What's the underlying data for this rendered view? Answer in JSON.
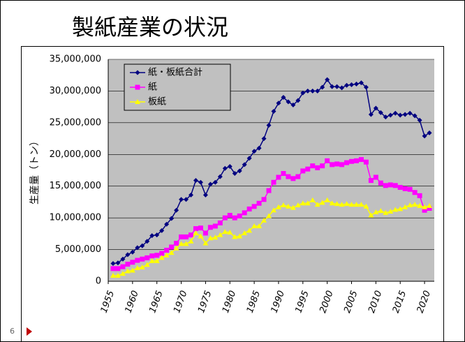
{
  "title": "製紙産業の状況",
  "page_number": "6",
  "chart_data": {
    "type": "line",
    "ylabel": "生産量（トン）",
    "x": [
      1956,
      1957,
      1958,
      1959,
      1960,
      1961,
      1962,
      1963,
      1964,
      1965,
      1966,
      1967,
      1968,
      1969,
      1970,
      1971,
      1972,
      1973,
      1974,
      1975,
      1976,
      1977,
      1978,
      1979,
      1980,
      1981,
      1982,
      1983,
      1984,
      1985,
      1986,
      1987,
      1988,
      1989,
      1990,
      1991,
      1992,
      1993,
      1994,
      1995,
      1996,
      1997,
      1998,
      1999,
      2000,
      2001,
      2002,
      2003,
      2004,
      2005,
      2006,
      2007,
      2008,
      2009,
      2010,
      2011,
      2012,
      2013,
      2014,
      2015,
      2016,
      2017,
      2018,
      2019,
      2020,
      2021
    ],
    "xlim": [
      1955,
      2022
    ],
    "xticks": [
      1955,
      1960,
      1965,
      1970,
      1975,
      1980,
      1985,
      1990,
      1995,
      2000,
      2005,
      2010,
      2015,
      2020
    ],
    "ylim": [
      0,
      35000000
    ],
    "yticks": [
      0,
      {
        "value": 5000000,
        "label": "5,000,000"
      },
      {
        "value": 10000000,
        "label": "10,000,000"
      },
      {
        "value": 15000000,
        "label": "15,000,000"
      },
      {
        "value": 20000000,
        "label": "20,000,000"
      },
      {
        "value": 25000000,
        "label": "25,000,000"
      },
      {
        "value": 30000000,
        "label": "30,000,000"
      },
      {
        "value": 35000000,
        "label": "35,000,000"
      }
    ],
    "grid": true,
    "legend": "upper-left",
    "series": [
      {
        "name": "紙・板紙合計",
        "color": "#000080",
        "marker": "diamond",
        "values": [
          2800000,
          2900000,
          3500000,
          4200000,
          4600000,
          5300000,
          5600000,
          6300000,
          7200000,
          7300000,
          8000000,
          9000000,
          9900000,
          11200000,
          12900000,
          12900000,
          13600000,
          15900000,
          15600000,
          13600000,
          15300000,
          15600000,
          16500000,
          17800000,
          18100000,
          17000000,
          17400000,
          18400000,
          19400000,
          20500000,
          21000000,
          22500000,
          24600000,
          26800000,
          28100000,
          29000000,
          28300000,
          27800000,
          28500000,
          29700000,
          30000000,
          30000000,
          30000000,
          30600000,
          31800000,
          30700000,
          30700000,
          30500000,
          30900000,
          31000000,
          31100000,
          31300000,
          30600000,
          26300000,
          27300000,
          26600000,
          25900000,
          26200000,
          26500000,
          26200000,
          26300000,
          26500000,
          26100000,
          25400000,
          22900000,
          23400000
        ]
      },
      {
        "name": "紙",
        "color": "#ff00ff",
        "marker": "square",
        "values": [
          2000000,
          2000000,
          2300000,
          2700000,
          3000000,
          3300000,
          3500000,
          3700000,
          4000000,
          4100000,
          4400000,
          4900000,
          5400000,
          6000000,
          7000000,
          7000000,
          7300000,
          8300000,
          8400000,
          7600000,
          8500000,
          8700000,
          9200000,
          10000000,
          10400000,
          10000000,
          10300000,
          10800000,
          11400000,
          11800000,
          12300000,
          12900000,
          14300000,
          15600000,
          16400000,
          17000000,
          16500000,
          16200000,
          16500000,
          17400000,
          17700000,
          18200000,
          17900000,
          18200000,
          19000000,
          18400000,
          18500000,
          18400000,
          18700000,
          18900000,
          19000000,
          19200000,
          18800000,
          15900000,
          16400000,
          15500000,
          15100000,
          15200000,
          15100000,
          14800000,
          14600000,
          14500000,
          14000000,
          13500000,
          11200000,
          11500000
        ]
      },
      {
        "name": "板紙",
        "color": "#ffff00",
        "marker": "triangle",
        "values": [
          900000,
          900000,
          1200000,
          1600000,
          1700000,
          2100000,
          2200000,
          2600000,
          3200000,
          3200000,
          3700000,
          4100000,
          4500000,
          5200000,
          5900000,
          5900000,
          6300000,
          7600000,
          7100000,
          6000000,
          6800000,
          6900000,
          7300000,
          7800000,
          7700000,
          7000000,
          7100000,
          7600000,
          8000000,
          8700000,
          8700000,
          9600000,
          10300000,
          11200000,
          11700000,
          12000000,
          11800000,
          11600000,
          12000000,
          12300000,
          12300000,
          12800000,
          12100000,
          12400000,
          12800000,
          12300000,
          12200000,
          12100000,
          12200000,
          12100000,
          12100000,
          12100000,
          11800000,
          10400000,
          10900000,
          11100000,
          10800000,
          11000000,
          11300000,
          11400000,
          11700000,
          12000000,
          12100000,
          11900000,
          11700000,
          11900000
        ]
      }
    ]
  }
}
